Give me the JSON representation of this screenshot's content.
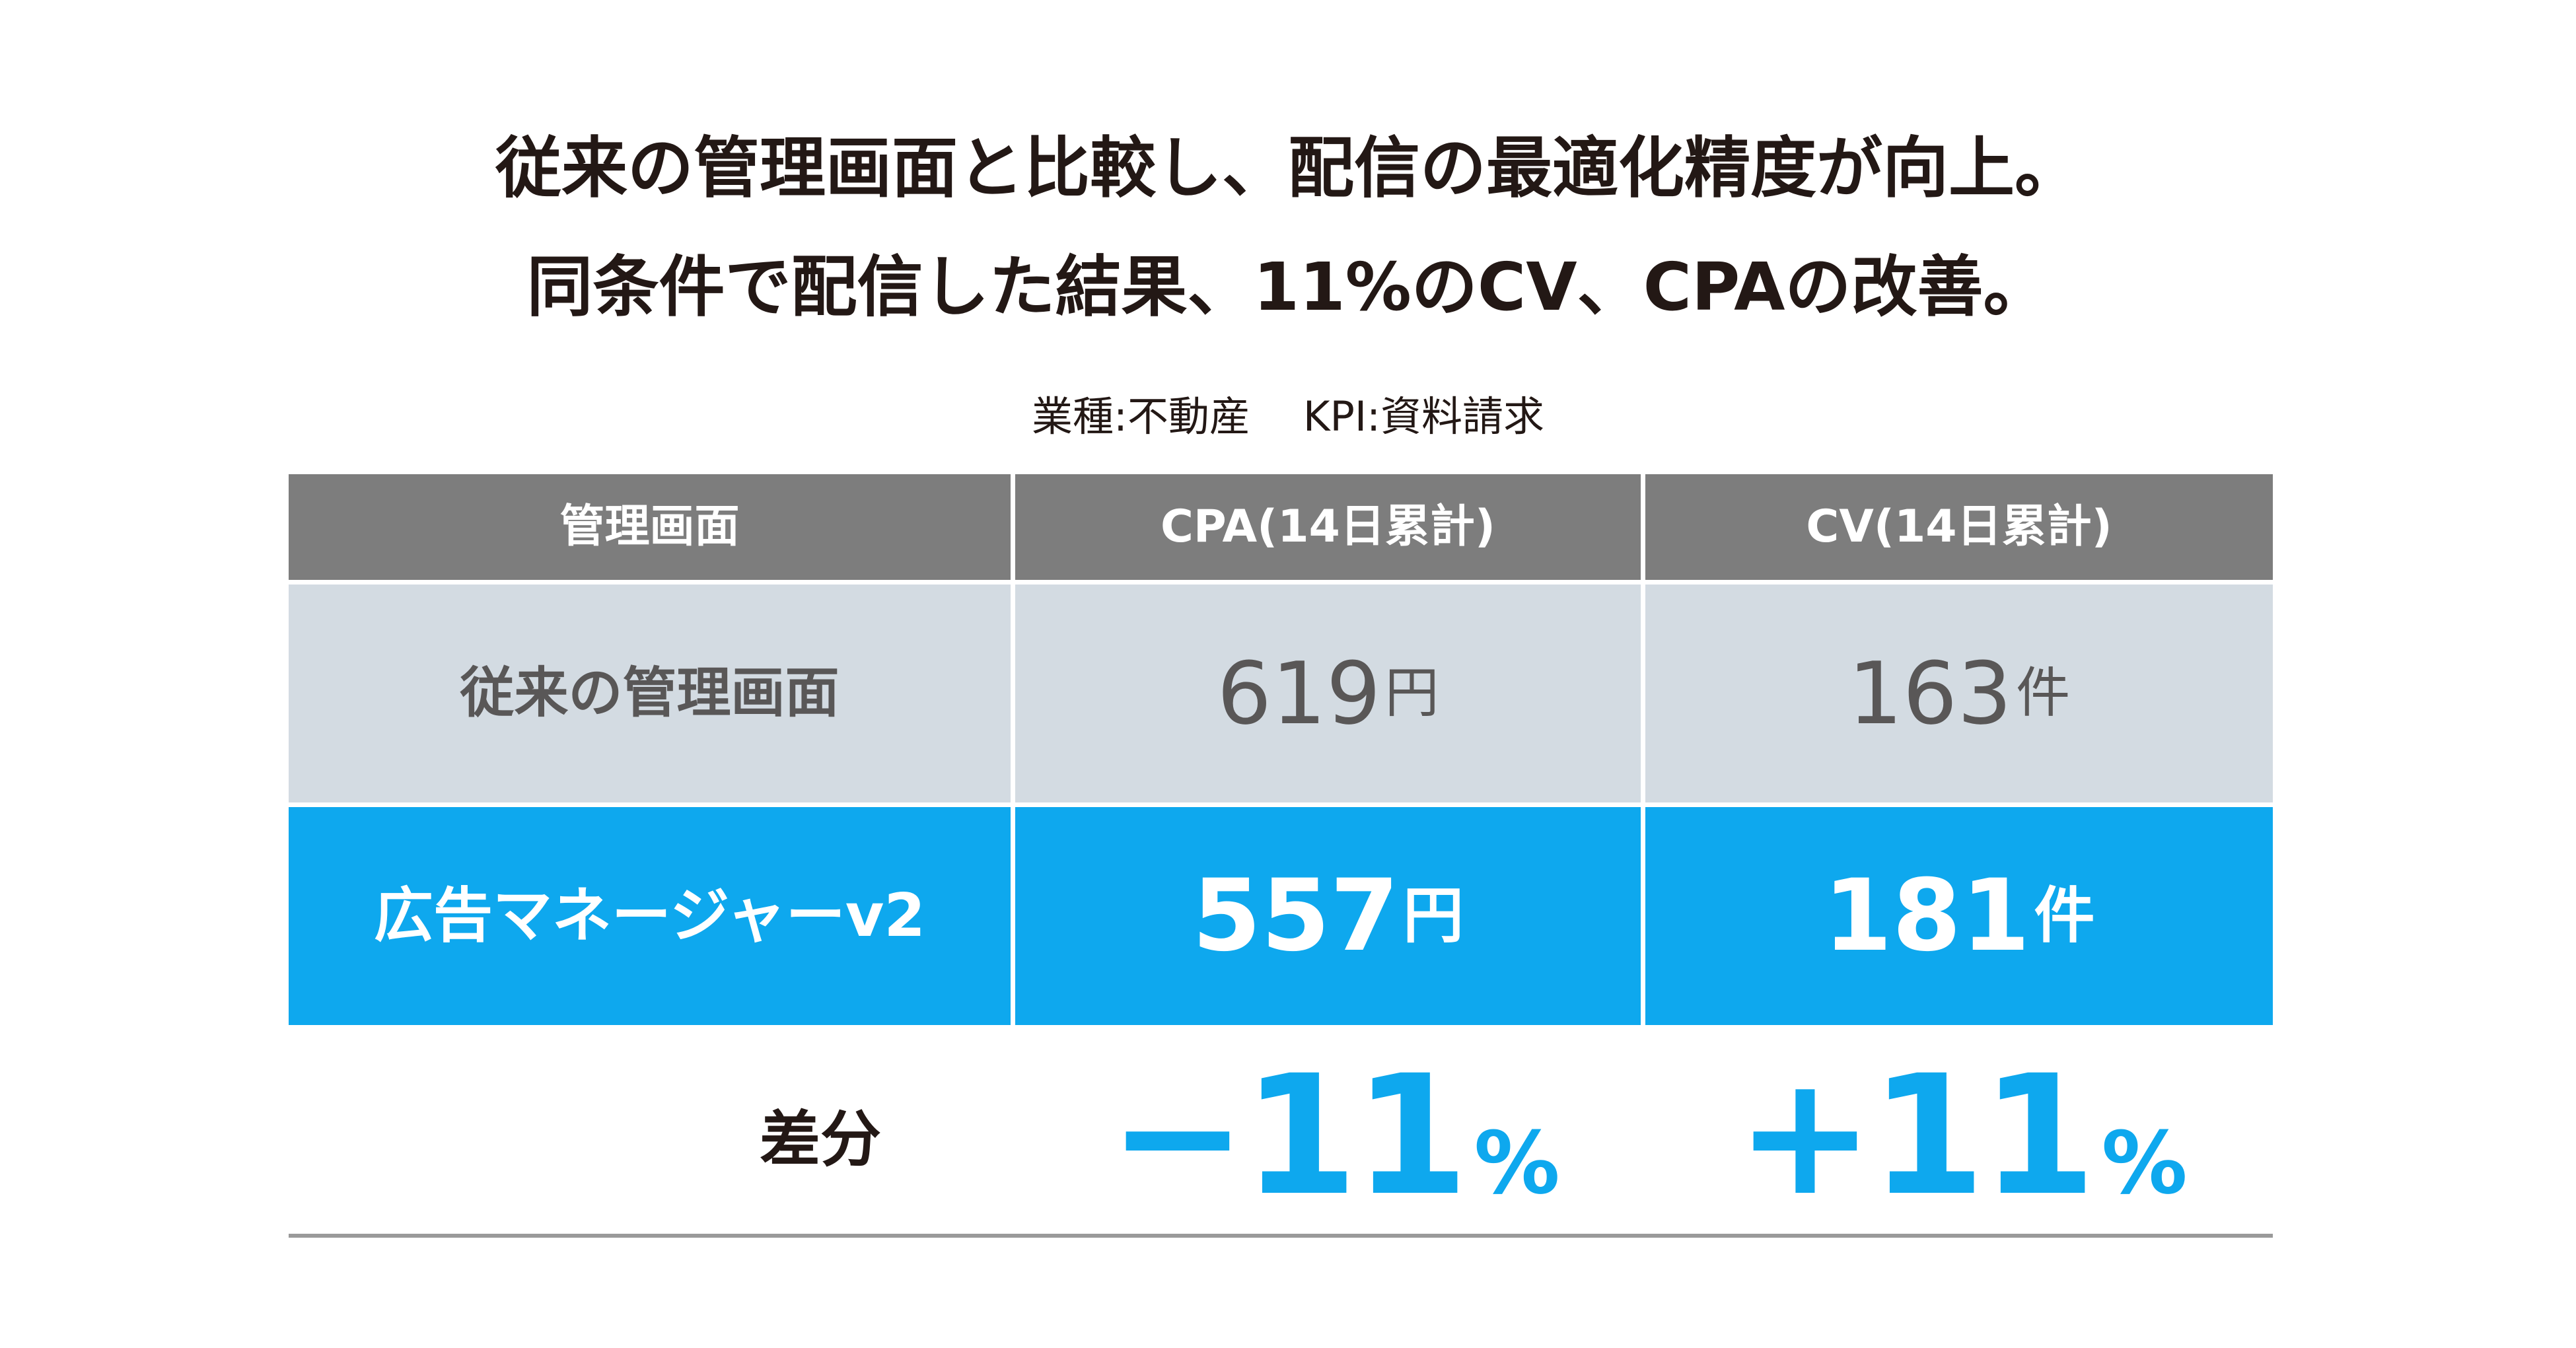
{
  "headline": {
    "line1": "従来の管理画面と比較し、配信の最適化精度が向上。",
    "line2": "同条件で配信した結果、11%のCV、CPAの改善。"
  },
  "conditions": {
    "industry": "業種:不動産",
    "kpi": "KPI:資料請求"
  },
  "table": {
    "headers": [
      "管理画面",
      "CPA(14日累計)",
      "CV(14日累計)"
    ],
    "rows": [
      {
        "label": "従来の管理画面",
        "cpa_value": "619",
        "cpa_unit": "円",
        "cv_value": "163",
        "cv_unit": "件"
      },
      {
        "label": "広告マネージャーv2",
        "cpa_value": "557",
        "cpa_unit": "円",
        "cv_value": "181",
        "cv_unit": "件"
      }
    ],
    "difference": {
      "label": "差分",
      "cpa": "−11",
      "cpa_unit": "%",
      "cv": "+11",
      "cv_unit": "%"
    }
  },
  "colors": {
    "header_bg": "#7d7d7d",
    "legacy_row_bg": "#d3dbe2",
    "highlight_row_bg": "#0ea8ee",
    "accent_text": "#0ea8ee",
    "headline_text": "#231815"
  }
}
